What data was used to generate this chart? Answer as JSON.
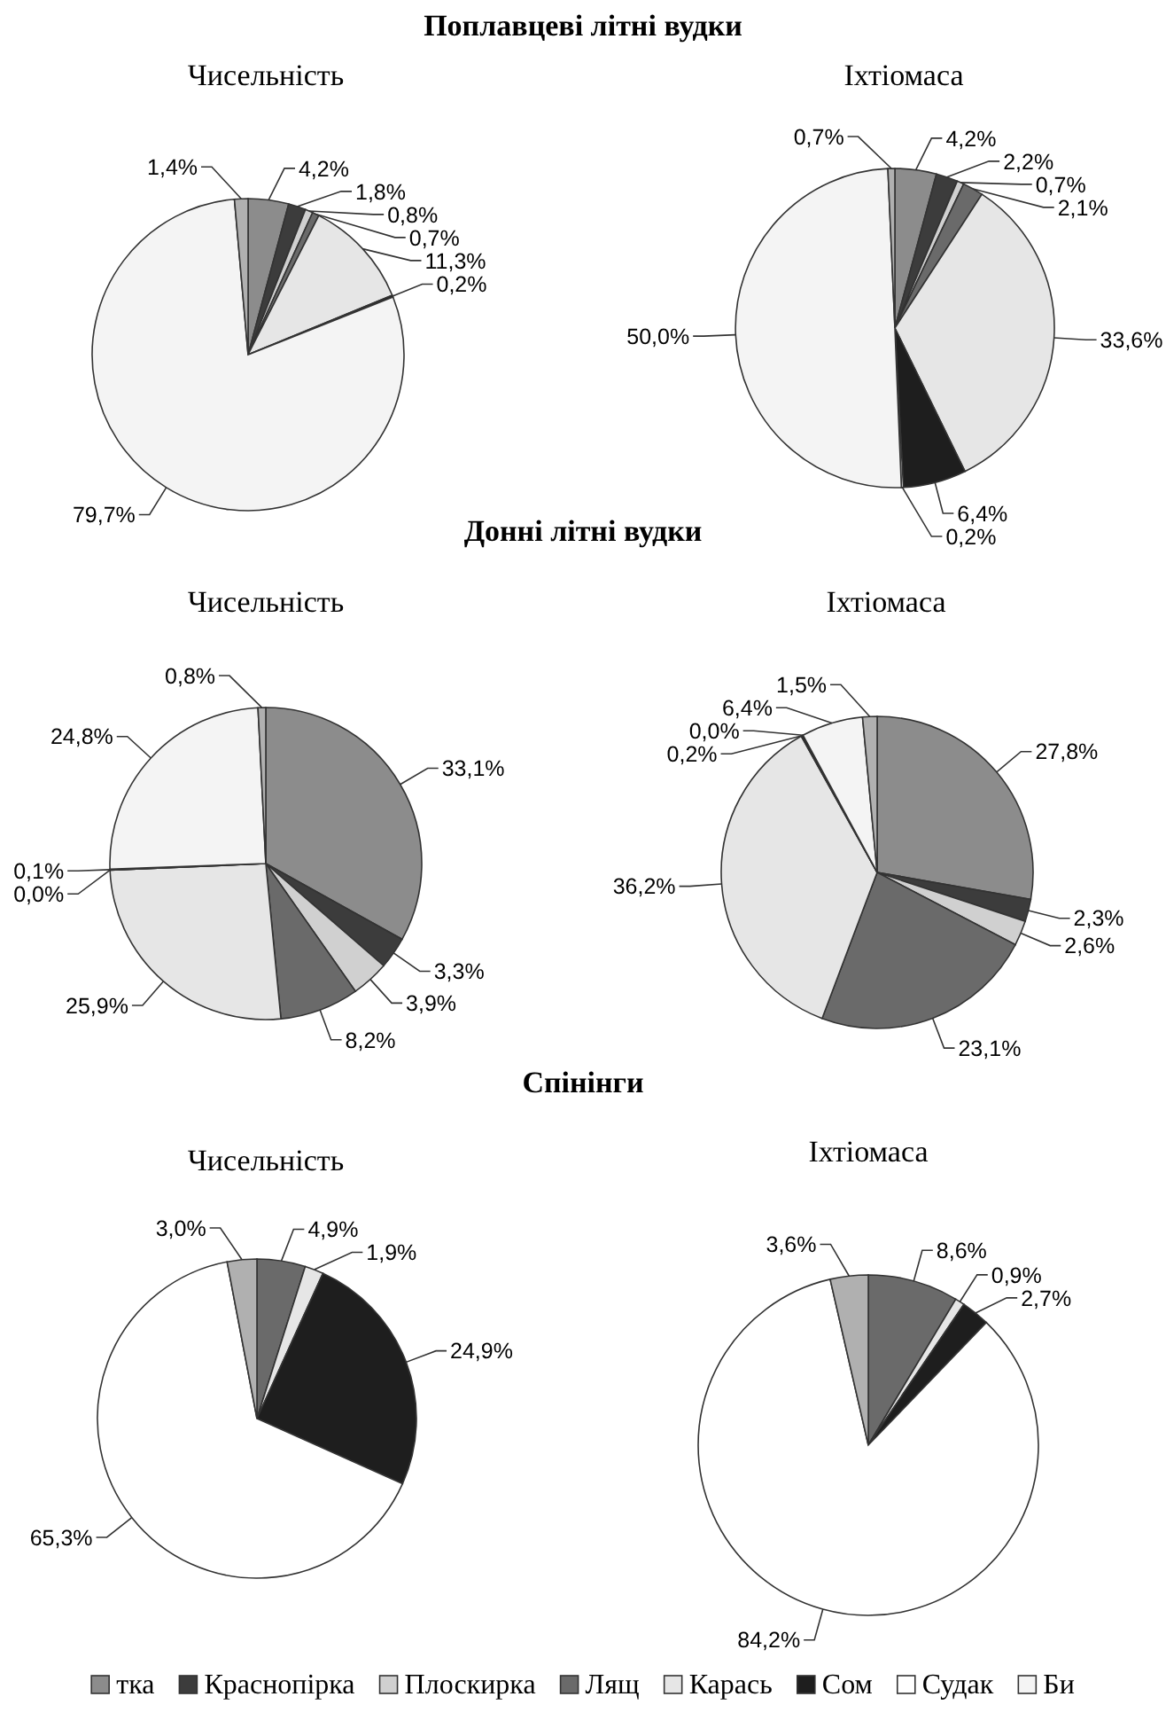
{
  "chart_data": [
    {
      "type": "pie",
      "title": "Чисельність",
      "annotations": [
        "Поплавцеві літні вудки"
      ],
      "colors": [
        "#8c8c8c",
        "#3c3c3c",
        "#d0d0d0",
        "#6a6a6a",
        "#e6e6e6",
        "#1e1e1e",
        null,
        "#f4f4f4",
        "#b0b0b0"
      ],
      "values": [
        4.2,
        1.8,
        0.8,
        0.7,
        11.3,
        0.2,
        null,
        79.7,
        1.4
      ],
      "value_labels": [
        "4,2%",
        "1,8%",
        "0,8%",
        "0,7%",
        "11,3%",
        "0,2%",
        null,
        "79,7%",
        "1,4%"
      ]
    },
    {
      "type": "pie",
      "title": "Іхтіомаса",
      "colors": [
        "#8c8c8c",
        "#3c3c3c",
        "#d0d0d0",
        "#6a6a6a",
        "#e6e6e6",
        "#1e1e1e",
        "#ffffff",
        "#f4f4f4",
        "#b0b0b0"
      ],
      "values": [
        4.2,
        2.2,
        0.7,
        2.1,
        33.6,
        6.4,
        0.2,
        50.0,
        0.7
      ],
      "value_labels": [
        "4,2%",
        "2,2%",
        "0,7%",
        "2,1%",
        "33,6%",
        "6,4%",
        "0,2%",
        "50,0%",
        "0,7%"
      ]
    },
    {
      "type": "pie",
      "title": "Чисельність",
      "annotations": [
        "Донні літні вудки"
      ],
      "colors": [
        "#8c8c8c",
        "#3c3c3c",
        "#d0d0d0",
        "#6a6a6a",
        "#e6e6e6",
        "#1e1e1e",
        "#ffffff",
        "#f4f4f4",
        "#b0b0b0"
      ],
      "values": [
        33.1,
        3.3,
        3.9,
        8.2,
        25.9,
        0.0,
        0.1,
        24.8,
        0.8
      ],
      "value_labels": [
        "33,1%",
        "3,3%",
        "3,9%",
        "8,2%",
        "25,9%",
        "0,0%",
        "0,1%",
        "24,8%",
        "0,8%"
      ]
    },
    {
      "type": "pie",
      "title": "Іхтіомаса",
      "colors": [
        "#8c8c8c",
        "#3c3c3c",
        "#d0d0d0",
        "#6a6a6a",
        "#e6e6e6",
        "#1e1e1e",
        "#ffffff",
        "#f4f4f4",
        "#b0b0b0"
      ],
      "values": [
        27.8,
        2.3,
        2.6,
        23.1,
        36.2,
        0.2,
        0.0,
        6.4,
        1.5
      ],
      "value_labels": [
        "27,8%",
        "2,3%",
        "2,6%",
        "23,1%",
        "36,2%",
        "0,2%",
        "0,0%",
        "6,4%",
        "1,5%"
      ]
    },
    {
      "type": "pie",
      "title": "Чисельність",
      "annotations": [
        "Спінінги"
      ],
      "colors": [
        null,
        null,
        null,
        "#6a6a6a",
        "#e6e6e6",
        "#1e1e1e",
        "#ffffff",
        null,
        "#b0b0b0"
      ],
      "values": [
        null,
        null,
        null,
        4.9,
        1.9,
        24.9,
        65.3,
        null,
        3.0
      ],
      "value_labels": [
        null,
        null,
        null,
        "4,9%",
        "1,9%",
        "24,9%",
        "65,3%",
        null,
        "3,0%"
      ]
    },
    {
      "type": "pie",
      "title": "Іхтіомаса",
      "legend": "bottom",
      "categories": [
        "тка",
        "Краснопірка",
        "Плоскирка",
        "Лящ",
        "Карась",
        "Сом",
        "Судак",
        "Би",
        null
      ],
      "colors": [
        "#8c8c8c",
        "#3c3c3c",
        "#d0d0d0",
        "#6a6a6a",
        "#e6e6e6",
        "#1e1e1e",
        "#ffffff",
        "#f4f4f4",
        "#b0b0b0"
      ],
      "values": [
        null,
        null,
        null,
        8.6,
        0.9,
        2.7,
        84.2,
        null,
        3.6
      ],
      "value_labels": [
        null,
        null,
        null,
        "8,6%",
        "0,9%",
        "2,7%",
        "84,2%",
        null,
        "3,6%"
      ]
    }
  ]
}
